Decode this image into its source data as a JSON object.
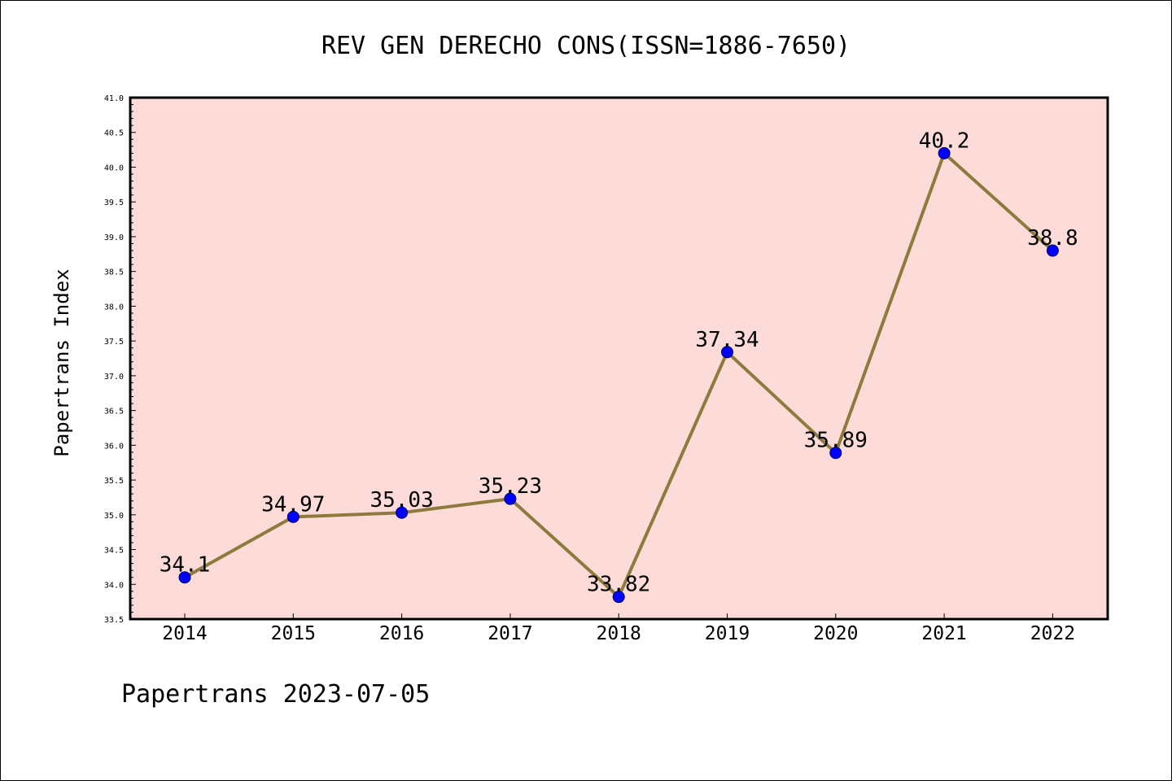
{
  "chart_data": {
    "type": "line",
    "title": "REV GEN DERECHO CONS(ISSN=1886-7650)",
    "xlabel": "",
    "ylabel": "Papertrans Index",
    "categories": [
      "2014",
      "2015",
      "2016",
      "2017",
      "2018",
      "2019",
      "2020",
      "2021",
      "2022"
    ],
    "values": [
      34.1,
      34.97,
      35.03,
      35.23,
      33.82,
      37.34,
      35.89,
      40.2,
      38.8
    ],
    "data_labels": [
      "34.1",
      "34.97",
      "35.03",
      "35.23",
      "33.82",
      "37.34",
      "35.89",
      "40.2",
      "38.8"
    ],
    "ylim": [
      33.5,
      41.0
    ],
    "yticks": [
      "33.5",
      "34.0",
      "34.5",
      "35.0",
      "35.5",
      "36.0",
      "36.5",
      "37.0",
      "37.5",
      "38.0",
      "38.5",
      "39.0",
      "39.5",
      "40.0",
      "40.5",
      "41.0"
    ],
    "grid": false,
    "colors": {
      "plot_background": "#fddbd9",
      "line": "#8f7a3d",
      "marker": "#0000ff"
    }
  },
  "footer": "Papertrans 2023-07-05"
}
